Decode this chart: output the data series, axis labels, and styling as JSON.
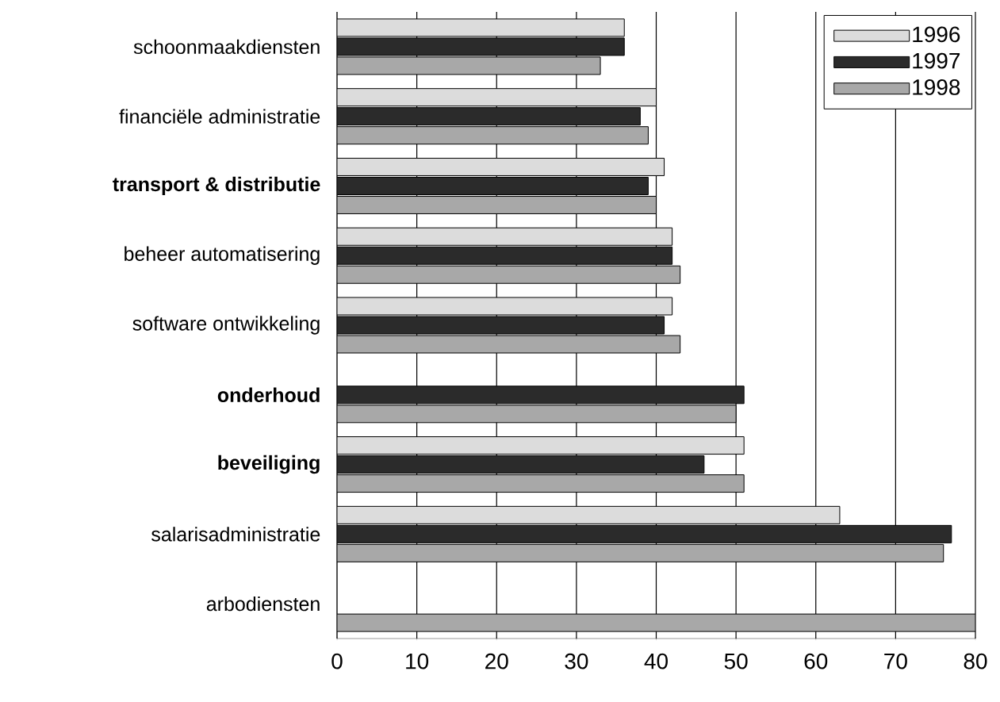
{
  "chart_data": {
    "type": "bar",
    "orientation": "horizontal",
    "categories": [
      "schoonmaakdiensten",
      "financiële administratie",
      "**transport & distributie**",
      "beheer automatisering",
      "software ontwikkeling",
      "**onderhoud**",
      "**beveiliging**",
      "salarisadministratie",
      "arbodiensten"
    ],
    "series": [
      {
        "name": "1996",
        "color": "#dcdcdc",
        "values": [
          36,
          40,
          41,
          42,
          42,
          null,
          51,
          63,
          null
        ]
      },
      {
        "name": "1997",
        "color": "#2b2b2b",
        "values": [
          36,
          38,
          39,
          42,
          41,
          51,
          46,
          77,
          null
        ]
      },
      {
        "name": "1998",
        "color": "#a8a8a8",
        "values": [
          33,
          39,
          40,
          43,
          43,
          50,
          51,
          76,
          80
        ]
      }
    ],
    "xlim": [
      0,
      80
    ],
    "xticks": [
      0,
      10,
      20,
      30,
      40,
      50,
      60,
      70,
      80
    ],
    "grid": "x",
    "legend": "top right"
  }
}
